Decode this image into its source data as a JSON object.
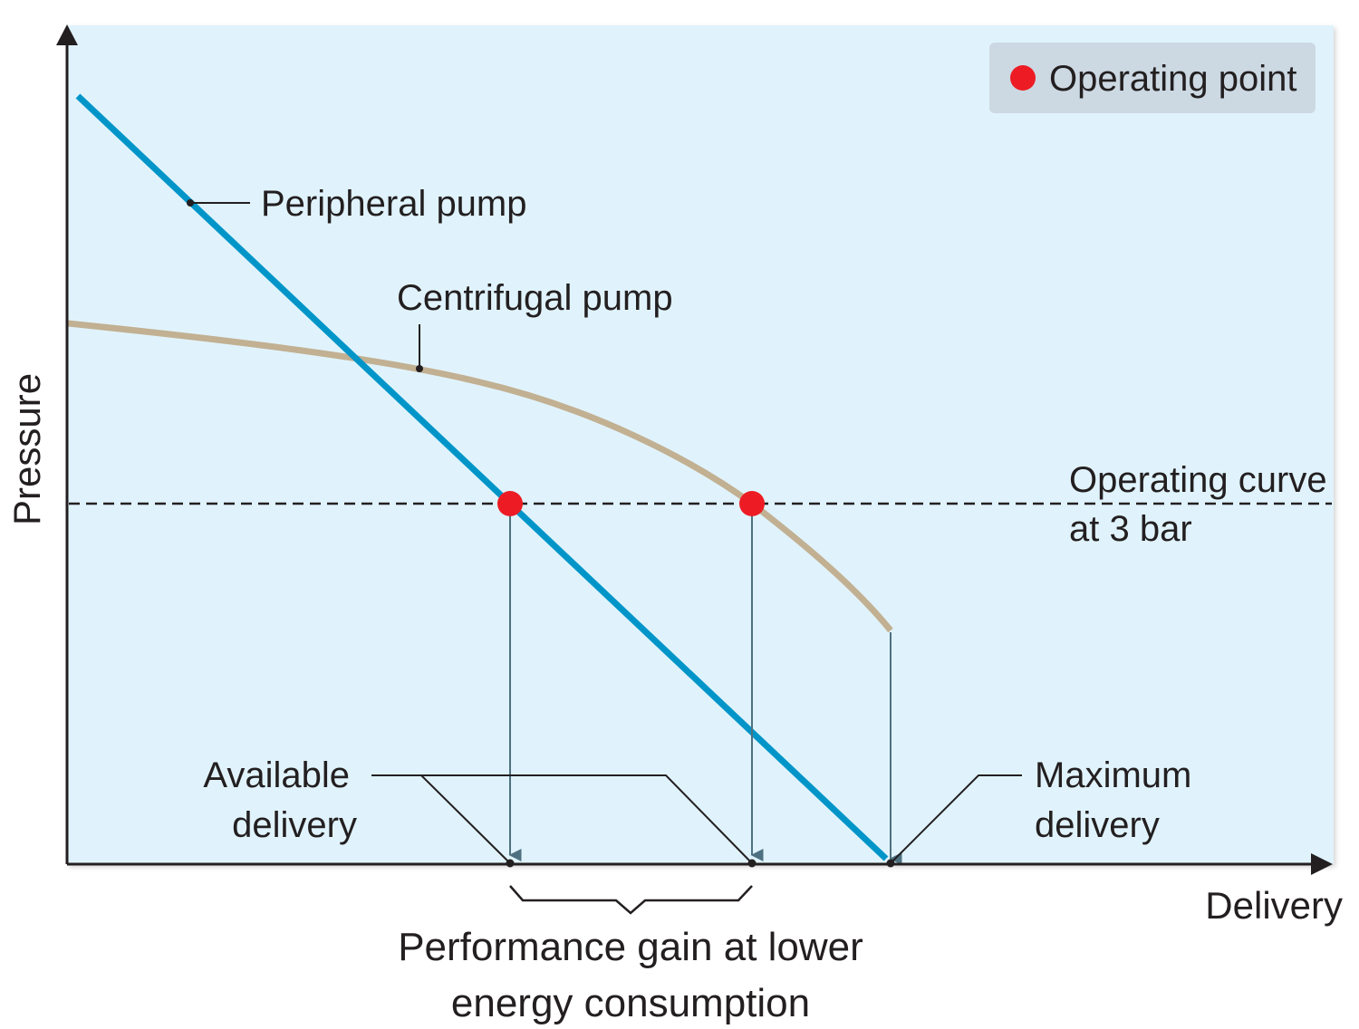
{
  "legend": {
    "label": "Operating point",
    "marker_color": "#ed1c24",
    "background": "#ccd8e2"
  },
  "axes": {
    "y_label": "Pressure",
    "x_label": "Delivery"
  },
  "curves": {
    "peripheral": {
      "label": "Peripheral pump",
      "color": "#0095c8"
    },
    "centrifugal": {
      "label": "Centrifugal pump",
      "color": "#c2b092"
    }
  },
  "operating_curve": {
    "line1": "Operating curve",
    "line2": "at 3 bar"
  },
  "annotations": {
    "available_line1": "Available",
    "available_line2": "delivery",
    "maximum_line1": "Maximum",
    "maximum_line2": "delivery",
    "gain_line1": "Performance gain at lower",
    "gain_line2": "energy consumption"
  },
  "colors": {
    "plot_background": "#e0f3fc",
    "drop_line": "#4e7181",
    "axis": "#231f20"
  }
}
